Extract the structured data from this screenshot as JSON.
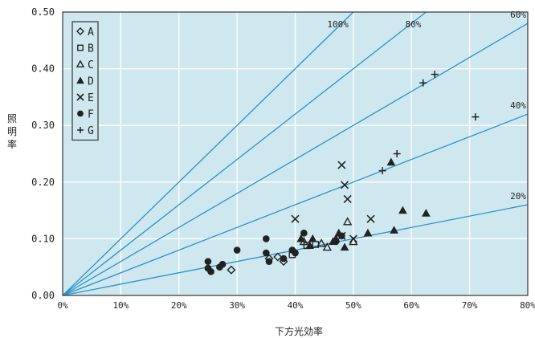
{
  "colors": {
    "plot_bg": "#cfe8ef",
    "grid": "#ffffff",
    "lines": "#2a93c8",
    "markers": "#222222",
    "frame": "#333333"
  },
  "chart_data": {
    "type": "scatter",
    "title": "",
    "xlabel": "下方光効率",
    "ylabel": "照明率",
    "xlim": [
      0,
      0.8
    ],
    "ylim": [
      0,
      0.5
    ],
    "x_ticks": [
      "0%",
      "10%",
      "20%",
      "30%",
      "40%",
      "50%",
      "60%",
      "70%",
      "80%"
    ],
    "y_ticks": [
      "0.00",
      "0.10",
      "0.20",
      "0.30",
      "0.40",
      "0.50"
    ],
    "grid": true,
    "legend_position": "top-left",
    "reference_lines": [
      {
        "label": "100%",
        "ratio": 1.0
      },
      {
        "label": "80%",
        "ratio": 0.8
      },
      {
        "label": "60%",
        "ratio": 0.6
      },
      {
        "label": "40%",
        "ratio": 0.4
      },
      {
        "label": "20%",
        "ratio": 0.2
      }
    ],
    "series": [
      {
        "name": "A",
        "marker": "diamond-open",
        "points": [
          [
            0.29,
            0.045
          ],
          [
            0.355,
            0.065
          ],
          [
            0.37,
            0.068
          ],
          [
            0.38,
            0.06
          ]
        ]
      },
      {
        "name": "B",
        "marker": "square-open",
        "points": [
          [
            0.395,
            0.072
          ],
          [
            0.42,
            0.088
          ],
          [
            0.435,
            0.09
          ]
        ]
      },
      {
        "name": "C",
        "marker": "triangle-open",
        "points": [
          [
            0.415,
            0.095
          ],
          [
            0.445,
            0.092
          ],
          [
            0.455,
            0.085
          ],
          [
            0.49,
            0.13
          ],
          [
            0.5,
            0.095
          ]
        ]
      },
      {
        "name": "D",
        "marker": "triangle-filled",
        "points": [
          [
            0.41,
            0.1
          ],
          [
            0.425,
            0.088
          ],
          [
            0.43,
            0.1
          ],
          [
            0.465,
            0.095
          ],
          [
            0.47,
            0.1
          ],
          [
            0.475,
            0.11
          ],
          [
            0.485,
            0.085
          ],
          [
            0.525,
            0.11
          ],
          [
            0.565,
            0.235
          ],
          [
            0.57,
            0.115
          ],
          [
            0.585,
            0.15
          ],
          [
            0.625,
            0.145
          ]
        ]
      },
      {
        "name": "E",
        "marker": "x",
        "points": [
          [
            0.4,
            0.135
          ],
          [
            0.48,
            0.23
          ],
          [
            0.485,
            0.195
          ],
          [
            0.49,
            0.17
          ],
          [
            0.48,
            0.105
          ],
          [
            0.53,
            0.135
          ],
          [
            0.5,
            0.1
          ]
        ]
      },
      {
        "name": "F",
        "marker": "circle-filled",
        "points": [
          [
            0.25,
            0.06
          ],
          [
            0.25,
            0.048
          ],
          [
            0.255,
            0.042
          ],
          [
            0.27,
            0.05
          ],
          [
            0.275,
            0.055
          ],
          [
            0.3,
            0.08
          ],
          [
            0.35,
            0.1
          ],
          [
            0.35,
            0.075
          ],
          [
            0.355,
            0.06
          ],
          [
            0.38,
            0.065
          ],
          [
            0.395,
            0.08
          ],
          [
            0.4,
            0.075
          ],
          [
            0.415,
            0.11
          ],
          [
            0.48,
            0.105
          ],
          [
            0.47,
            0.095
          ]
        ]
      },
      {
        "name": "G",
        "marker": "plus",
        "points": [
          [
            0.55,
            0.22
          ],
          [
            0.575,
            0.25
          ],
          [
            0.62,
            0.375
          ],
          [
            0.64,
            0.39
          ],
          [
            0.71,
            0.315
          ]
        ]
      }
    ]
  }
}
